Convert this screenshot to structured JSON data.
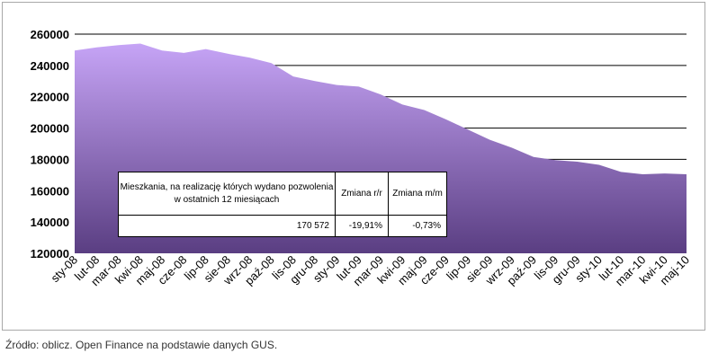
{
  "chart_data": {
    "type": "area",
    "x": [
      "sty-08",
      "lut-08",
      "mar-08",
      "kwi-08",
      "maj-08",
      "cze-08",
      "lip-08",
      "sie-08",
      "wrz-08",
      "paź-08",
      "lis-08",
      "gru-08",
      "sty-09",
      "lut-09",
      "mar-09",
      "kwi-09",
      "maj-09",
      "cze-09",
      "lip-09",
      "sie-09",
      "wrz-09",
      "paź-09",
      "lis-09",
      "gru-09",
      "sty-10",
      "lut-10",
      "mar-10",
      "kwi-10",
      "maj-10"
    ],
    "values": [
      249500,
      251500,
      253000,
      254000,
      249500,
      248000,
      250500,
      247500,
      245000,
      241500,
      233000,
      230000,
      227500,
      226500,
      221500,
      215000,
      211500,
      205500,
      199000,
      192500,
      187500,
      181500,
      179500,
      178500,
      176500,
      172000,
      170500,
      171000,
      170500
    ],
    "y_ticks": [
      "260000",
      "240000",
      "220000",
      "200000",
      "180000",
      "160000",
      "140000",
      "120000"
    ],
    "ylim": [
      120000,
      260000
    ],
    "grid": true,
    "colors": {
      "area_top": "#c6a4f6",
      "area_bottom": "#5a3e82",
      "gridline": "#000000"
    },
    "table": {
      "header_label": "Mieszkania, na realizację których wydano pozwolenia w ostatnich 12 miesiącach",
      "col2_header": "Zmiana r/r",
      "col3_header": "Zmiana m/m",
      "value": "170 572",
      "change_yy": "-19,91%",
      "change_mm": "-0,73%"
    }
  },
  "source": "Źródło: oblicz. Open Finance na podstawie danych GUS."
}
